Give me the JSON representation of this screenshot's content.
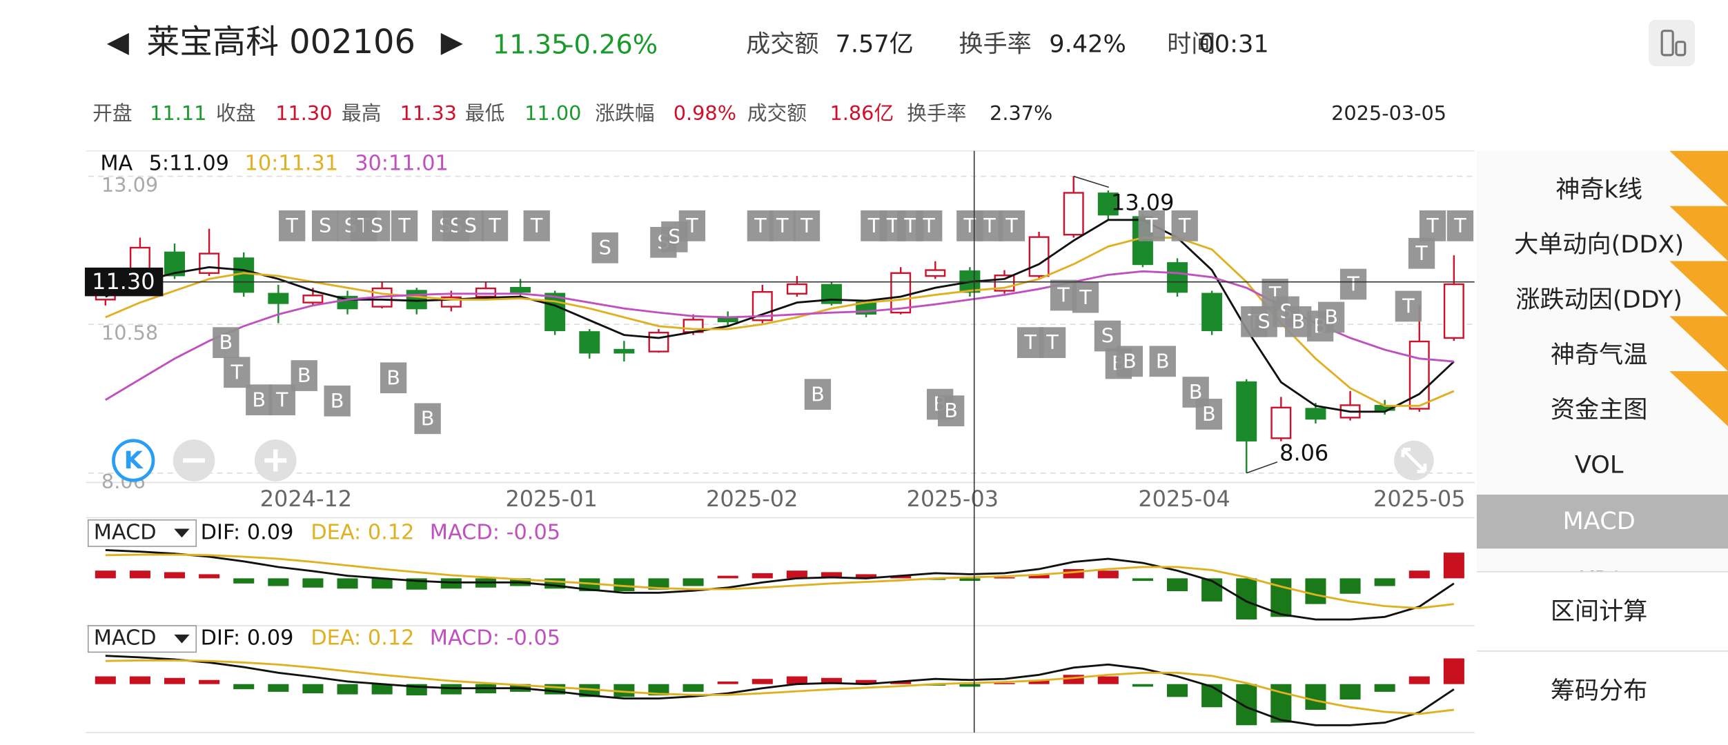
{
  "header": {
    "name": "莱宝高科 002106",
    "price": "11.35",
    "change": "-0.26%",
    "amount_label": "成交额",
    "amount": "7.57亿",
    "turnover_label": "换手率",
    "turnover": "9.42%",
    "time_label": "时间",
    "time": "00:31"
  },
  "info": {
    "open_label": "开盘",
    "open": "11.11",
    "close_label": "收盘",
    "close": "11.30",
    "high_label": "最高",
    "high": "11.33",
    "low_label": "最低",
    "low": "11.00",
    "pct_label": "涨跌幅",
    "pct": "0.98%",
    "amount_label": "成交额",
    "amount": "1.86亿",
    "turnover_label": "换手率",
    "turnover": "2.37%",
    "date": "2025-03-05"
  },
  "k_button": "K",
  "menu": [
    "神奇k线",
    "大单动向(DDX)",
    "涨跌动因(DDY)",
    "神奇气温",
    "资金主图",
    "VOL",
    "MACD",
    "KDJ",
    "区间计算",
    "筹码分布"
  ],
  "chart_data": [
    {
      "type": "candlestick",
      "legend_title": "MA",
      "up_color": "#d0102a",
      "down_color": "#1a8a2a",
      "grid": true,
      "ylim": [
        7.9,
        13.52
      ],
      "yticks": [
        13.09,
        10.58,
        8.06
      ],
      "xlim": [
        -0.5,
        39.5
      ],
      "xticks": [
        {
          "value": 5.8,
          "label": "2024-12"
        },
        {
          "value": 12.9,
          "label": "2025-01"
        },
        {
          "value": 18.7,
          "label": "2025-02"
        },
        {
          "value": 24.5,
          "label": "2025-03"
        },
        {
          "value": 31.2,
          "label": "2025-04"
        },
        {
          "value": 38.0,
          "label": "2025-05"
        }
      ],
      "open": [
        11.0,
        11.2,
        11.8,
        11.45,
        11.7,
        11.1,
        10.95,
        11.05,
        10.88,
        11.15,
        10.88,
        11.05,
        11.2,
        11.1,
        10.45,
        10.15,
        10.12,
        10.45,
        10.68,
        10.65,
        11.1,
        11.25,
        10.95,
        10.78,
        11.4,
        11.48,
        11.15,
        11.4,
        12.1,
        12.8,
        12.4,
        11.62,
        11.1,
        9.6,
        8.65,
        9.15,
        9.0,
        9.2,
        9.15,
        10.35
      ],
      "high": [
        11.35,
        12.05,
        11.95,
        12.2,
        11.8,
        11.25,
        11.2,
        11.15,
        11.3,
        11.2,
        11.15,
        11.3,
        11.35,
        11.15,
        10.5,
        10.3,
        10.5,
        10.75,
        10.8,
        11.25,
        11.4,
        11.3,
        11.0,
        11.55,
        11.65,
        11.55,
        11.5,
        12.15,
        13.09,
        12.85,
        12.45,
        11.7,
        11.15,
        9.65,
        9.35,
        9.25,
        9.45,
        9.3,
        10.9,
        11.75
      ],
      "low": [
        10.9,
        11.15,
        11.35,
        11.4,
        11.05,
        10.6,
        10.9,
        10.75,
        10.85,
        10.75,
        10.8,
        11.0,
        11.05,
        10.4,
        10.0,
        9.95,
        10.1,
        10.4,
        10.55,
        10.6,
        11.05,
        10.9,
        10.7,
        10.75,
        11.35,
        11.05,
        11.1,
        11.35,
        12.05,
        12.35,
        11.55,
        11.05,
        10.4,
        8.06,
        8.6,
        8.9,
        8.95,
        9.05,
        9.1,
        10.3
      ],
      "close": [
        11.13,
        11.88,
        11.41,
        11.78,
        11.13,
        10.94,
        11.07,
        10.85,
        11.19,
        10.85,
        11.04,
        11.19,
        11.13,
        10.48,
        10.1,
        10.1,
        10.44,
        10.66,
        10.63,
        11.13,
        11.26,
        10.94,
        10.76,
        11.45,
        11.5,
        11.13,
        11.41,
        12.06,
        12.81,
        12.44,
        11.6,
        11.13,
        10.48,
        8.61,
        9.17,
        8.98,
        9.21,
        9.13,
        10.29,
        11.26
      ],
      "series": [
        {
          "name": "5:11.09",
          "color": "#111111",
          "values": [
            11.05,
            11.3,
            11.45,
            11.55,
            11.5,
            11.35,
            11.15,
            11.0,
            11.0,
            10.98,
            11.0,
            11.03,
            11.05,
            10.9,
            10.65,
            10.4,
            10.35,
            10.45,
            10.55,
            10.75,
            10.95,
            11.0,
            10.98,
            11.05,
            11.2,
            11.3,
            11.35,
            11.6,
            12.0,
            12.35,
            12.35,
            12.05,
            11.5,
            10.5,
            9.6,
            9.2,
            9.1,
            9.1,
            9.4,
            9.95
          ]
        },
        {
          "name": "10:11.31",
          "color": "#e0b020",
          "values": [
            10.7,
            10.95,
            11.15,
            11.35,
            11.45,
            11.4,
            11.3,
            11.2,
            11.1,
            11.05,
            11.0,
            11.0,
            11.02,
            10.97,
            10.85,
            10.7,
            10.55,
            10.5,
            10.5,
            10.58,
            10.7,
            10.85,
            10.95,
            11.0,
            11.08,
            11.15,
            11.2,
            11.35,
            11.6,
            11.9,
            12.05,
            12.05,
            11.85,
            11.3,
            10.6,
            10.0,
            9.5,
            9.2,
            9.2,
            9.45
          ]
        },
        {
          "name": "30:11.01",
          "color": "#c050c0",
          "values": [
            9.3,
            9.65,
            10.0,
            10.3,
            10.55,
            10.75,
            10.9,
            11.0,
            11.05,
            11.08,
            11.1,
            11.1,
            11.1,
            11.05,
            10.95,
            10.85,
            10.78,
            10.72,
            10.7,
            10.72,
            10.75,
            10.78,
            10.8,
            10.85,
            10.92,
            11.0,
            11.08,
            11.18,
            11.3,
            11.42,
            11.48,
            11.45,
            11.38,
            11.2,
            10.9,
            10.6,
            10.35,
            10.15,
            10.0,
            9.95
          ]
        }
      ],
      "annotations": [
        "13.09",
        "8.06"
      ],
      "signals": [
        "T",
        "S",
        "S",
        "T",
        "S",
        "T",
        "S",
        "S",
        "S",
        "T",
        "T",
        "S",
        "S",
        "S",
        "T",
        "T",
        "T",
        "T",
        "T",
        "T",
        "T",
        "T",
        "T",
        "T",
        "T",
        "T",
        "T",
        "T",
        "T",
        "T",
        "B",
        "T",
        "B",
        "T",
        "B",
        "B",
        "B",
        "B",
        "B",
        "B",
        "B",
        "T",
        "T",
        "T",
        "T",
        "S",
        "B",
        "B",
        "B",
        "B",
        "B",
        "T",
        "S",
        "T",
        "S",
        "B",
        "B",
        "B",
        "T",
        "T"
      ]
    },
    {
      "type": "macd",
      "legend_title": "MACD",
      "up_color": "#c8101e",
      "down_color": "#1a7a1a",
      "ylim": [
        -0.9,
        0.6
      ],
      "xlim": [
        -0.5,
        39.5
      ],
      "series": [
        {
          "name": "DIF: 0.09",
          "color": "#111111",
          "values": [
            0.55,
            0.52,
            0.48,
            0.42,
            0.33,
            0.22,
            0.14,
            0.05,
            0.0,
            -0.05,
            -0.08,
            -0.08,
            -0.08,
            -0.14,
            -0.22,
            -0.28,
            -0.28,
            -0.24,
            -0.18,
            -0.08,
            0.0,
            0.02,
            0.0,
            0.05,
            0.1,
            0.08,
            0.1,
            0.18,
            0.32,
            0.38,
            0.3,
            0.15,
            -0.05,
            -0.45,
            -0.7,
            -0.8,
            -0.8,
            -0.75,
            -0.55,
            -0.1
          ]
        },
        {
          "name": "DEA: 0.12",
          "color": "#e0b020",
          "values": [
            0.45,
            0.46,
            0.46,
            0.45,
            0.42,
            0.38,
            0.32,
            0.25,
            0.18,
            0.12,
            0.06,
            0.02,
            -0.02,
            -0.06,
            -0.1,
            -0.15,
            -0.19,
            -0.21,
            -0.21,
            -0.18,
            -0.14,
            -0.1,
            -0.07,
            -0.04,
            0.0,
            0.02,
            0.04,
            0.07,
            0.12,
            0.18,
            0.22,
            0.22,
            0.16,
            0.02,
            -0.16,
            -0.32,
            -0.45,
            -0.54,
            -0.58,
            -0.5
          ]
        },
        {
          "name": "MACD: -0.05",
          "color": "#c050c0",
          "values": [
            0.15,
            0.15,
            0.12,
            0.08,
            -0.1,
            -0.15,
            -0.18,
            -0.2,
            -0.2,
            -0.22,
            -0.2,
            -0.18,
            -0.15,
            -0.2,
            -0.25,
            -0.25,
            -0.22,
            -0.15,
            0.05,
            0.1,
            0.15,
            0.12,
            0.08,
            0.05,
            -0.03,
            -0.05,
            0.02,
            0.08,
            0.18,
            0.15,
            -0.05,
            -0.25,
            -0.45,
            -0.8,
            -0.75,
            -0.5,
            -0.3,
            -0.15,
            0.15,
            0.5
          ]
        }
      ]
    }
  ]
}
